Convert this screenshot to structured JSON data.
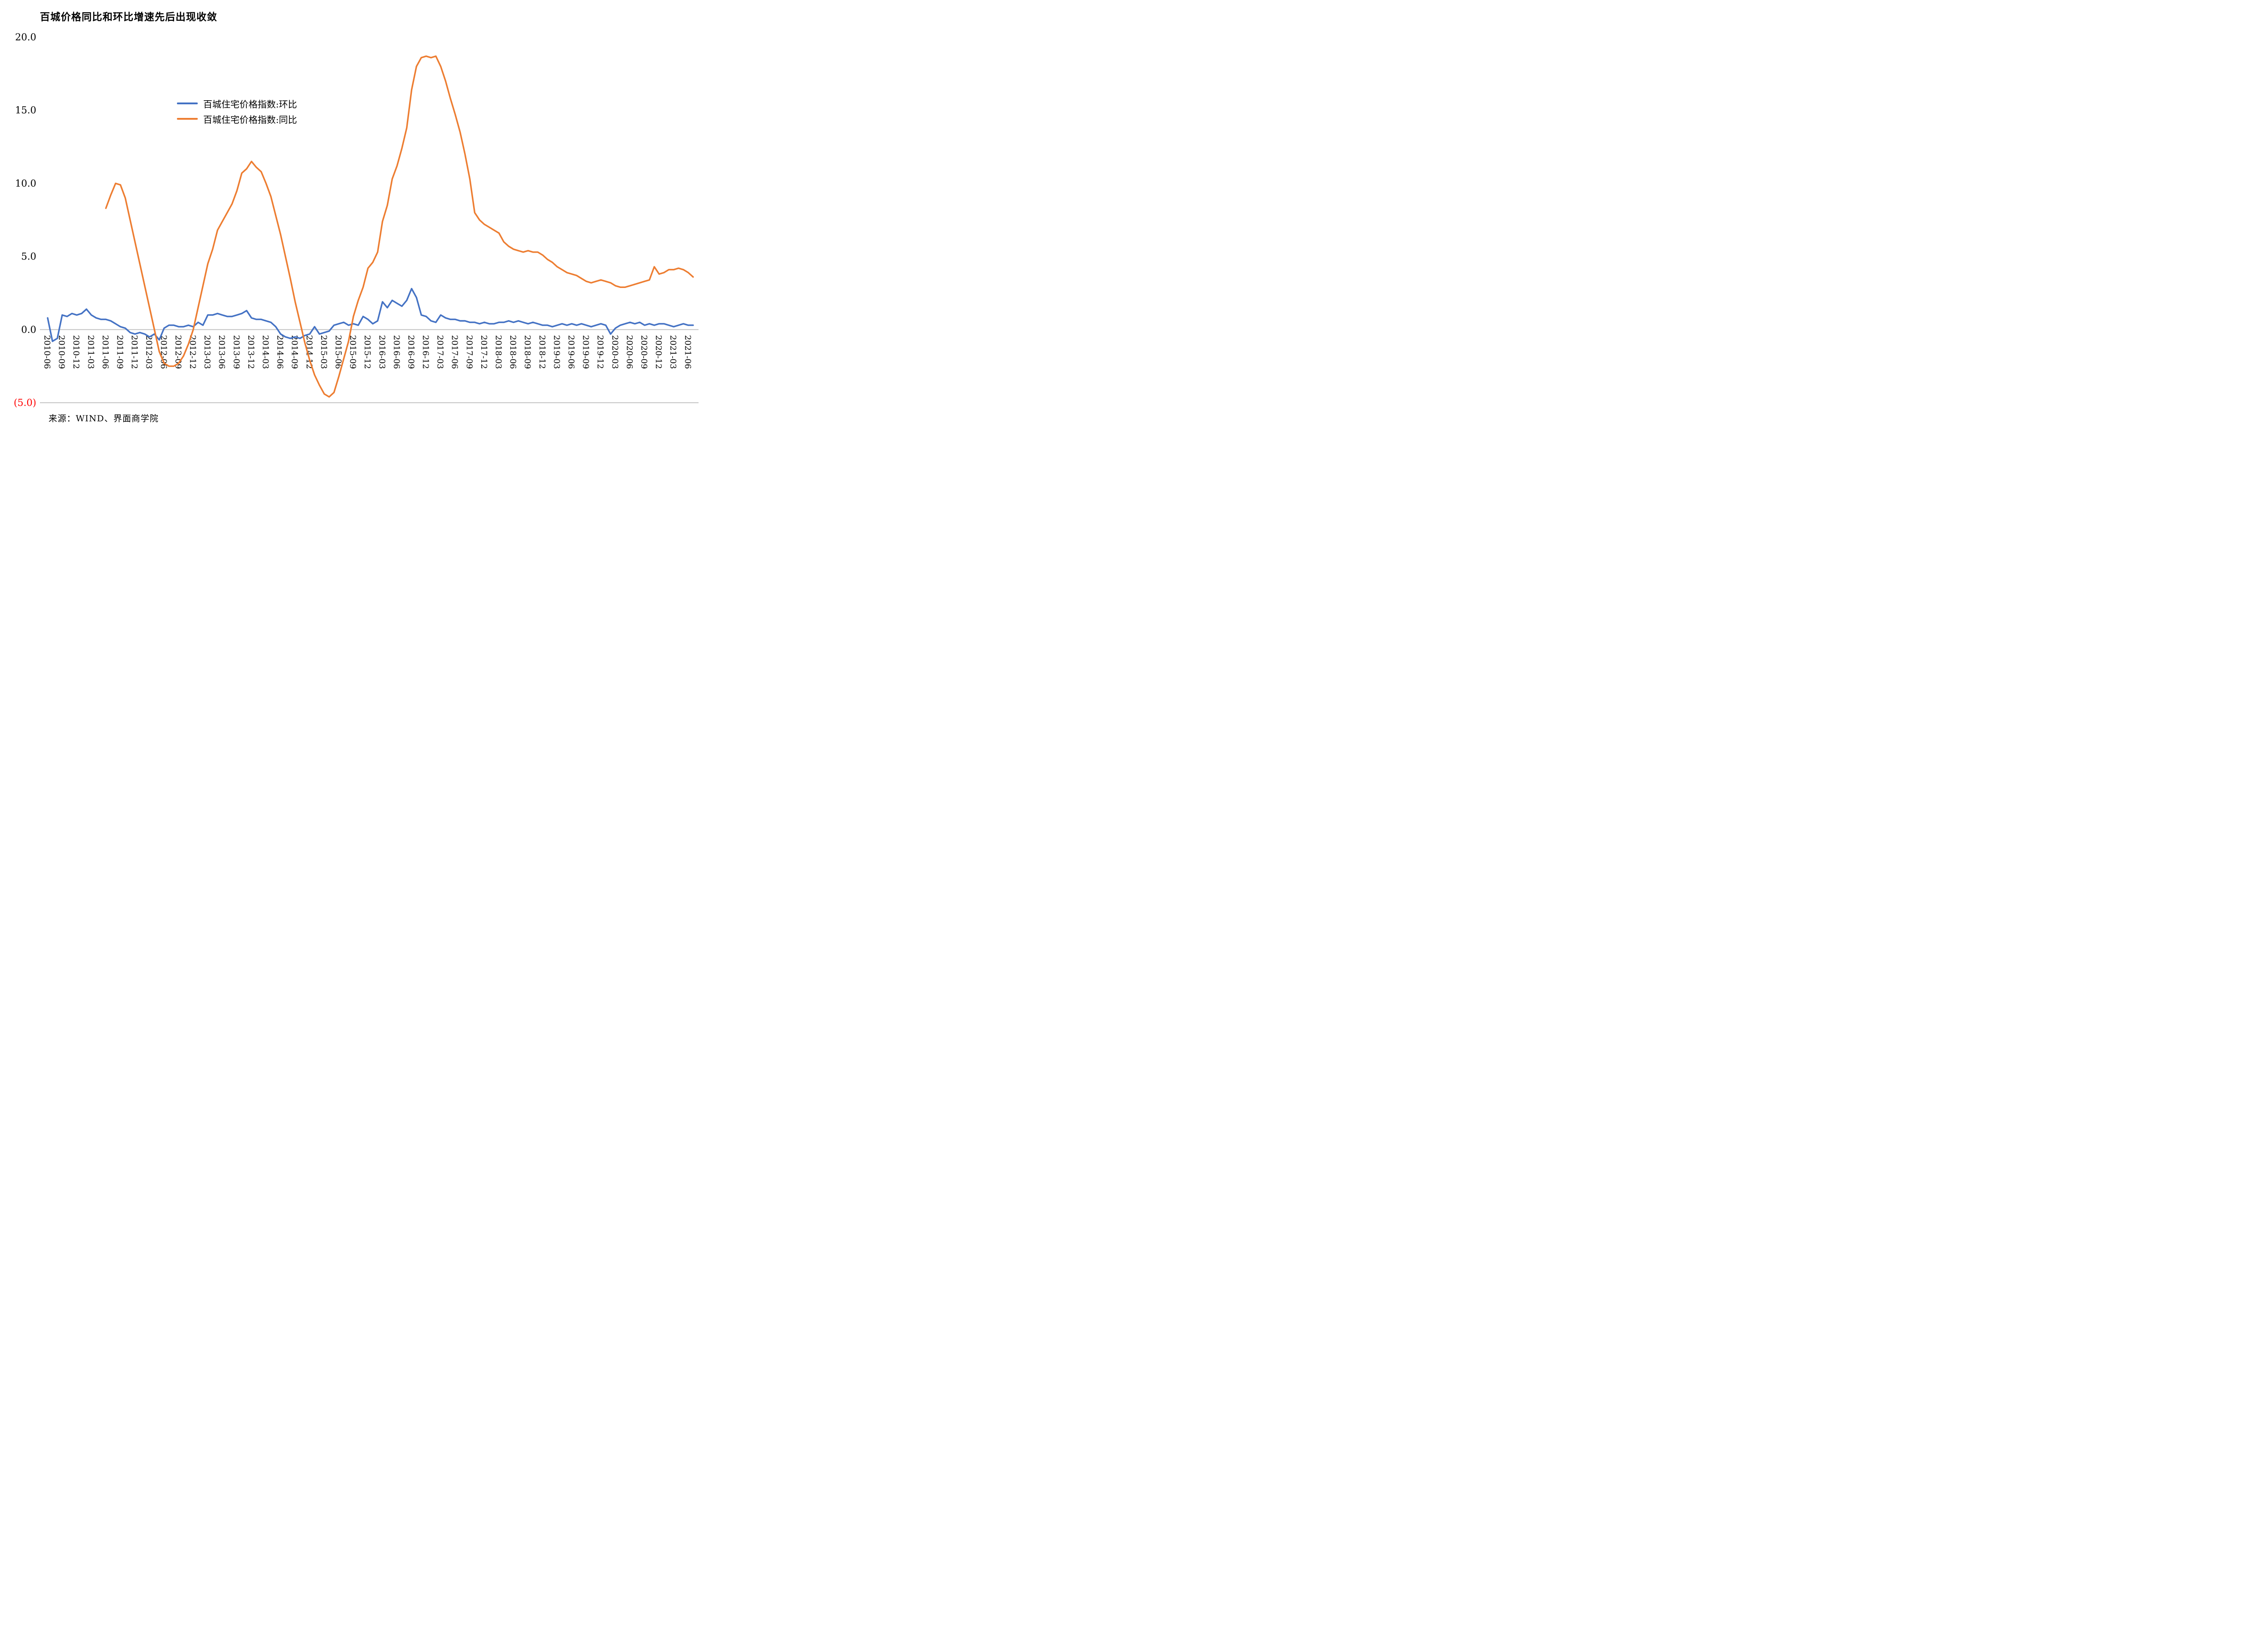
{
  "title": "百城价格同比和环比增速先后出现收敛",
  "source": "来源：WIND、界面商学院",
  "colors": {
    "mom_line": "#4472C4",
    "yoy_line": "#ED7D31",
    "grid": "#C6C6C6",
    "negative": "#FF0000",
    "text": "#000000",
    "background": "#FFFFFF"
  },
  "chart_data": {
    "type": "line",
    "title": "百城价格同比和环比增速先后出现收敛",
    "xlabel": "",
    "ylabel": "",
    "ylim": [
      -5,
      20
    ],
    "yticks": [
      20,
      15,
      10,
      5,
      0,
      -5
    ],
    "ytick_labels": [
      "20.0",
      "15.0",
      "10.0",
      "5.0",
      "0.0",
      "(5.0)"
    ],
    "x_tick_every": 3,
    "grid": false,
    "legend_position": "upper-left-inside",
    "x": [
      "2010-06",
      "2010-07",
      "2010-08",
      "2010-09",
      "2010-10",
      "2010-11",
      "2010-12",
      "2011-01",
      "2011-02",
      "2011-03",
      "2011-04",
      "2011-05",
      "2011-06",
      "2011-07",
      "2011-08",
      "2011-09",
      "2011-10",
      "2011-11",
      "2011-12",
      "2012-01",
      "2012-02",
      "2012-03",
      "2012-04",
      "2012-05",
      "2012-06",
      "2012-07",
      "2012-08",
      "2012-09",
      "2012-10",
      "2012-11",
      "2012-12",
      "2013-01",
      "2013-02",
      "2013-03",
      "2013-04",
      "2013-05",
      "2013-06",
      "2013-07",
      "2013-08",
      "2013-09",
      "2013-10",
      "2013-11",
      "2013-12",
      "2014-01",
      "2014-02",
      "2014-03",
      "2014-04",
      "2014-05",
      "2014-06",
      "2014-07",
      "2014-08",
      "2014-09",
      "2014-10",
      "2014-11",
      "2014-12",
      "2015-01",
      "2015-02",
      "2015-03",
      "2015-04",
      "2015-05",
      "2015-06",
      "2015-07",
      "2015-08",
      "2015-09",
      "2015-10",
      "2015-11",
      "2015-12",
      "2016-01",
      "2016-02",
      "2016-03",
      "2016-04",
      "2016-05",
      "2016-06",
      "2016-07",
      "2016-08",
      "2016-09",
      "2016-10",
      "2016-11",
      "2016-12",
      "2017-01",
      "2017-02",
      "2017-03",
      "2017-04",
      "2017-05",
      "2017-06",
      "2017-07",
      "2017-08",
      "2017-09",
      "2017-10",
      "2017-11",
      "2017-12",
      "2018-01",
      "2018-02",
      "2018-03",
      "2018-04",
      "2018-05",
      "2018-06",
      "2018-07",
      "2018-08",
      "2018-09",
      "2018-10",
      "2018-11",
      "2018-12",
      "2019-01",
      "2019-02",
      "2019-03",
      "2019-04",
      "2019-05",
      "2019-06",
      "2019-07",
      "2019-08",
      "2019-09",
      "2019-10",
      "2019-11",
      "2019-12",
      "2020-01",
      "2020-02",
      "2020-03",
      "2020-04",
      "2020-05",
      "2020-06",
      "2020-07",
      "2020-08",
      "2020-09",
      "2020-10",
      "2020-11",
      "2020-12",
      "2021-01",
      "2021-02",
      "2021-03",
      "2021-04",
      "2021-05",
      "2021-06",
      "2021-07"
    ],
    "series": [
      {
        "name": "百城住宅价格指数:环比",
        "color": "#4472C4",
        "values": [
          0.8,
          -0.8,
          -0.6,
          1.0,
          0.9,
          1.1,
          1.0,
          1.1,
          1.4,
          1.0,
          0.8,
          0.7,
          0.7,
          0.6,
          0.4,
          0.2,
          0.1,
          -0.2,
          -0.3,
          -0.2,
          -0.3,
          -0.5,
          -0.3,
          -0.7,
          0.1,
          0.3,
          0.3,
          0.2,
          0.2,
          0.3,
          0.2,
          0.5,
          0.3,
          1.0,
          1.0,
          1.1,
          1.0,
          0.9,
          0.9,
          1.0,
          1.1,
          1.3,
          0.8,
          0.7,
          0.7,
          0.6,
          0.5,
          0.2,
          -0.3,
          -0.5,
          -0.6,
          -0.5,
          -0.6,
          -0.4,
          -0.3,
          0.2,
          -0.3,
          -0.2,
          -0.1,
          0.3,
          0.4,
          0.5,
          0.3,
          0.4,
          0.3,
          0.9,
          0.7,
          0.4,
          0.6,
          1.9,
          1.5,
          2.0,
          1.8,
          1.6,
          2.0,
          2.8,
          2.2,
          1.0,
          0.9,
          0.6,
          0.5,
          1.0,
          0.8,
          0.7,
          0.7,
          0.6,
          0.6,
          0.5,
          0.5,
          0.4,
          0.5,
          0.4,
          0.4,
          0.5,
          0.5,
          0.6,
          0.5,
          0.6,
          0.5,
          0.4,
          0.5,
          0.4,
          0.3,
          0.3,
          0.2,
          0.3,
          0.4,
          0.3,
          0.4,
          0.3,
          0.4,
          0.3,
          0.2,
          0.3,
          0.4,
          0.3,
          -0.3,
          0.1,
          0.3,
          0.4,
          0.5,
          0.4,
          0.5,
          0.3,
          0.4,
          0.3,
          0.4,
          0.4,
          0.3,
          0.2,
          0.3,
          0.4,
          0.3,
          0.3
        ]
      },
      {
        "name": "百城住宅价格指数:同比",
        "color": "#ED7D31",
        "values": [
          null,
          null,
          null,
          null,
          null,
          null,
          null,
          null,
          null,
          null,
          null,
          null,
          8.3,
          9.2,
          10.0,
          9.9,
          9.0,
          7.5,
          6.0,
          4.5,
          3.0,
          1.5,
          0.0,
          -1.5,
          -2.3,
          -2.5,
          -2.5,
          -2.3,
          -1.8,
          -1.0,
          0.0,
          1.5,
          3.0,
          4.5,
          5.5,
          6.8,
          7.4,
          8.0,
          8.6,
          9.5,
          10.7,
          11.0,
          11.5,
          11.1,
          10.8,
          10.0,
          9.1,
          7.8,
          6.5,
          5.0,
          3.5,
          1.9,
          0.5,
          -0.9,
          -2.1,
          -3.1,
          -3.8,
          -4.4,
          -4.6,
          -4.3,
          -3.2,
          -2.0,
          -0.8,
          0.9,
          2.0,
          2.9,
          4.2,
          4.6,
          5.3,
          7.4,
          8.5,
          10.3,
          11.2,
          12.4,
          13.8,
          16.4,
          18.0,
          18.6,
          18.7,
          18.6,
          18.7,
          18.0,
          17.0,
          15.8,
          14.7,
          13.5,
          12.0,
          10.3,
          8.0,
          7.5,
          7.2,
          7.0,
          6.8,
          6.6,
          6.0,
          5.7,
          5.5,
          5.4,
          5.3,
          5.4,
          5.3,
          5.3,
          5.1,
          4.8,
          4.6,
          4.3,
          4.1,
          3.9,
          3.8,
          3.7,
          3.5,
          3.3,
          3.2,
          3.3,
          3.4,
          3.3,
          3.2,
          3.0,
          2.9,
          2.9,
          3.0,
          3.1,
          3.2,
          3.3,
          3.4,
          4.3,
          3.8,
          3.9,
          4.1,
          4.1,
          4.2,
          4.1,
          3.9,
          3.6
        ]
      }
    ]
  }
}
